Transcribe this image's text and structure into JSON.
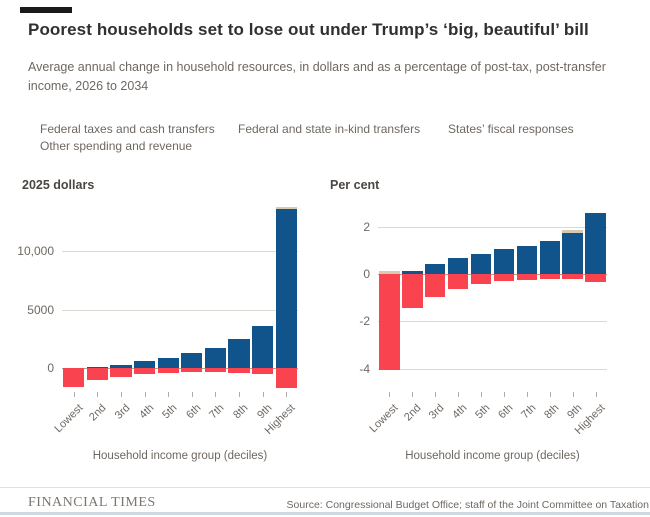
{
  "header": {
    "title": "Poorest households set to lose out under Trump’s ‘big, beautiful’ bill",
    "subtitle": "Average annual change in household resources, in dollars and as a percentage of post-tax, post-transfer income, 2026 to 2034"
  },
  "legend": {
    "items": [
      {
        "label": "Federal taxes and cash transfers",
        "color_key": "blue"
      },
      {
        "label": "Federal and state in-kind transfers",
        "color_key": "red"
      },
      {
        "label": "States’ fiscal responses",
        "color_key": "tan"
      },
      {
        "label": "Other spending and revenue",
        "color_key": "gray"
      }
    ]
  },
  "colors": {
    "blue": "#11548c",
    "red": "#f94450",
    "tan": "#d8cab0",
    "gray": "#b8b2a7",
    "grid": "#dcd9d3",
    "zero_line": "#a8a29a",
    "accent_bar": "#1a1a1a",
    "text_primary": "#30302e",
    "text_secondary": "#6e6862",
    "bottom_edge": "#cdd9e3"
  },
  "chart_data": [
    {
      "type": "bar",
      "stacked": true,
      "unit_label": "2025 dollars",
      "categories": [
        "Lowest",
        "2nd",
        "3rd",
        "4th",
        "5th",
        "6th",
        "7th",
        "8th",
        "9th",
        "Highest"
      ],
      "series": [
        {
          "name": "Federal taxes and cash transfers",
          "color_key": "blue",
          "values": [
            0,
            100,
            300,
            600,
            900,
            1250,
            1750,
            2450,
            3600,
            13600
          ]
        },
        {
          "name": "States’ fiscal responses",
          "color_key": "tan",
          "values": [
            0,
            0,
            0,
            0,
            0,
            0,
            0,
            0,
            0,
            200
          ]
        },
        {
          "name": "Federal and state in-kind transfers",
          "color_key": "red",
          "values": [
            -1600,
            -1050,
            -800,
            -550,
            -430,
            -380,
            -380,
            -430,
            -550,
            -1750
          ]
        }
      ],
      "y_ticks": [
        {
          "value": 10000,
          "label": "10,000"
        },
        {
          "value": 5000,
          "label": "5000"
        },
        {
          "value": 0,
          "label": "0"
        }
      ],
      "y_range": [
        -1885,
        14570
      ],
      "xlabel": "Household income group (deciles)",
      "grid": true,
      "legend_position": "top"
    },
    {
      "type": "bar",
      "stacked": true,
      "unit_label": "Per cent",
      "categories": [
        "Lowest",
        "2nd",
        "3rd",
        "4th",
        "5th",
        "6th",
        "7th",
        "8th",
        "9th",
        "Highest"
      ],
      "series": [
        {
          "name": "Federal taxes and cash transfers",
          "color_key": "blue",
          "values": [
            0,
            0.15,
            0.45,
            0.7,
            0.85,
            1.05,
            1.2,
            1.4,
            1.75,
            2.6
          ]
        },
        {
          "name": "States’ fiscal responses",
          "color_key": "tan",
          "values": [
            0.15,
            0,
            0,
            0,
            0,
            0,
            0,
            0,
            0.1,
            0
          ]
        },
        {
          "name": "Federal and state in-kind transfers",
          "color_key": "red",
          "values": [
            -4.05,
            -1.45,
            -0.95,
            -0.65,
            -0.4,
            -0.3,
            -0.25,
            -0.2,
            -0.2,
            -0.35
          ]
        }
      ],
      "y_ticks": [
        {
          "value": 2,
          "label": "2"
        },
        {
          "value": 0,
          "label": "0"
        },
        {
          "value": -2,
          "label": "-2"
        },
        {
          "value": -4,
          "label": "-4"
        }
      ],
      "y_range": [
        -4.91,
        2.93
      ],
      "xlabel": "Household income group (deciles)",
      "grid": true,
      "legend_position": "top"
    }
  ],
  "footer": {
    "brand": "FINANCIAL TIMES",
    "source": "Source: Congressional Budget Office; staff of the Joint Committee on Taxation"
  }
}
